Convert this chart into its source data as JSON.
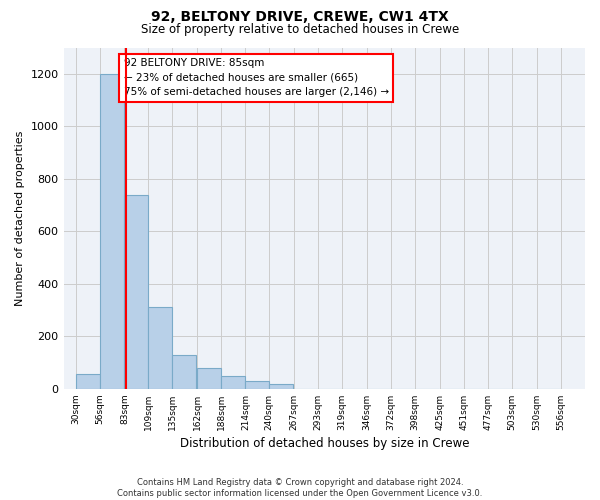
{
  "title_line1": "92, BELTONY DRIVE, CREWE, CW1 4TX",
  "title_line2": "Size of property relative to detached houses in Crewe",
  "xlabel": "Distribution of detached houses by size in Crewe",
  "ylabel": "Number of detached properties",
  "bar_color": "#b8d0e8",
  "bar_edge_color": "#7aaac8",
  "bar_left_edges": [
    30,
    56,
    83,
    109,
    135,
    162,
    188,
    214,
    240,
    267,
    293,
    319,
    346,
    372,
    398,
    425,
    451,
    477,
    503,
    530
  ],
  "bar_heights": [
    57,
    1200,
    740,
    310,
    130,
    80,
    50,
    30,
    18,
    0,
    0,
    0,
    0,
    0,
    0,
    0,
    0,
    0,
    0,
    0
  ],
  "bin_width": 26,
  "x_tick_labels": [
    "30sqm",
    "56sqm",
    "83sqm",
    "109sqm",
    "135sqm",
    "162sqm",
    "188sqm",
    "214sqm",
    "240sqm",
    "267sqm",
    "293sqm",
    "319sqm",
    "346sqm",
    "372sqm",
    "398sqm",
    "425sqm",
    "451sqm",
    "477sqm",
    "503sqm",
    "530sqm",
    "556sqm"
  ],
  "x_tick_positions": [
    30,
    56,
    83,
    109,
    135,
    162,
    188,
    214,
    240,
    267,
    293,
    319,
    346,
    372,
    398,
    425,
    451,
    477,
    503,
    530,
    556
  ],
  "ylim": [
    0,
    1300
  ],
  "yticks": [
    0,
    200,
    400,
    600,
    800,
    1000,
    1200
  ],
  "property_line_x": 85,
  "annotation_box_text": "92 BELTONY DRIVE: 85sqm\n← 23% of detached houses are smaller (665)\n75% of semi-detached houses are larger (2,146) →",
  "box_color": "white",
  "box_edge_color": "red",
  "vline_color": "red",
  "footer_text": "Contains HM Land Registry data © Crown copyright and database right 2024.\nContains public sector information licensed under the Open Government Licence v3.0.",
  "bg_color": "#eef2f8",
  "plot_bg_color": "white",
  "grid_color": "#cccccc"
}
